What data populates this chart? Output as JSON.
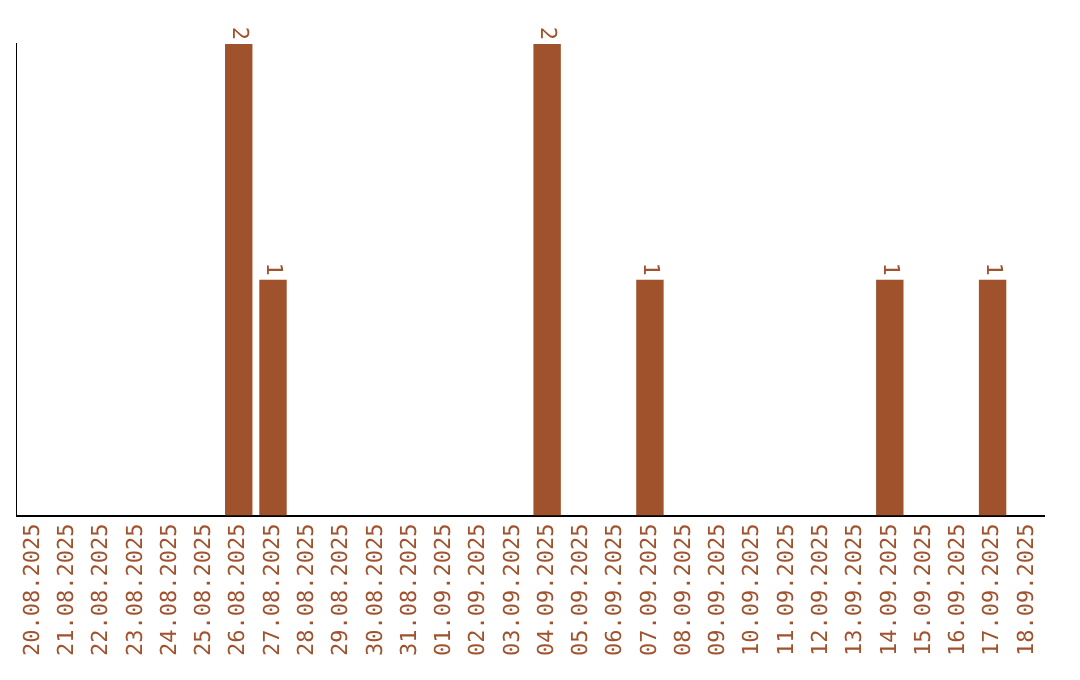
{
  "chart_data": {
    "type": "bar",
    "categories": [
      "20.08.2025",
      "21.08.2025",
      "22.08.2025",
      "23.08.2025",
      "24.08.2025",
      "25.08.2025",
      "26.08.2025",
      "27.08.2025",
      "28.08.2025",
      "29.08.2025",
      "30.08.2025",
      "31.08.2025",
      "01.09.2025",
      "02.09.2025",
      "03.09.2025",
      "04.09.2025",
      "05.09.2025",
      "06.09.2025",
      "07.09.2025",
      "08.09.2025",
      "09.09.2025",
      "10.09.2025",
      "11.09.2025",
      "12.09.2025",
      "13.09.2025",
      "14.09.2025",
      "15.09.2025",
      "16.09.2025",
      "17.09.2025",
      "18.09.2025"
    ],
    "values": [
      0,
      0,
      0,
      0,
      0,
      0,
      2,
      1,
      0,
      0,
      0,
      0,
      0,
      0,
      0,
      2,
      0,
      0,
      1,
      0,
      0,
      0,
      0,
      0,
      0,
      1,
      0,
      0,
      1,
      0
    ],
    "value_labels": [
      null,
      null,
      null,
      null,
      null,
      null,
      "2",
      "1",
      null,
      null,
      null,
      null,
      null,
      null,
      null,
      "2",
      null,
      null,
      "1",
      null,
      null,
      null,
      null,
      null,
      null,
      "1",
      null,
      null,
      "1",
      null
    ],
    "color": "#a0522d",
    "grid": false,
    "legend": false,
    "tick_labels": "x"
  }
}
